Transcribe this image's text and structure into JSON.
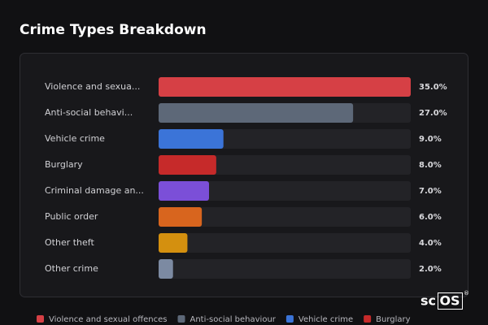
{
  "chart_data": {
    "type": "bar",
    "orientation": "horizontal",
    "title": "Crime Types Breakdown",
    "categories": [
      "Violence and sexua...",
      "Anti-social behavi...",
      "Vehicle crime",
      "Burglary",
      "Criminal damage an...",
      "Public order",
      "Other theft",
      "Other crime"
    ],
    "values": [
      35.0,
      27.0,
      9.0,
      8.0,
      7.0,
      6.0,
      4.0,
      2.0
    ],
    "value_labels": [
      "35.0%",
      "27.0%",
      "9.0%",
      "8.0%",
      "7.0%",
      "6.0%",
      "4.0%",
      "2.0%"
    ],
    "colors": [
      "#d64045",
      "#5d6878",
      "#3b74d8",
      "#c62a2a",
      "#7b4fd8",
      "#d8651e",
      "#d4900f",
      "#7c8aa2"
    ],
    "legend": [
      "Violence and sexual offences",
      "Anti-social behaviour",
      "Vehicle crime",
      "Burglary"
    ]
  },
  "brand": {
    "prefix": "sc",
    "box": "OS",
    "mark": "®"
  }
}
